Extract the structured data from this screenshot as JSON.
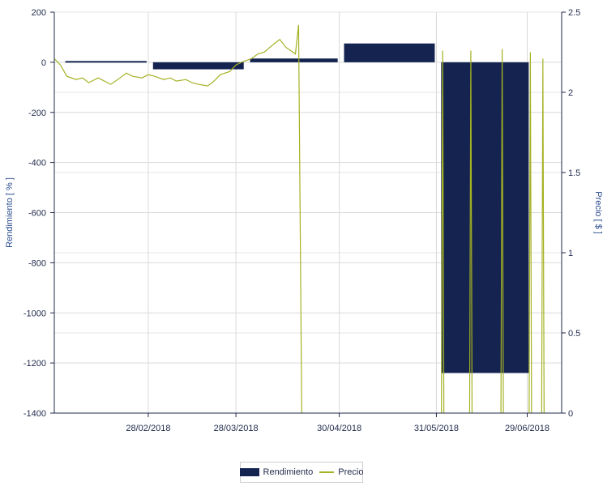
{
  "chart_data": {
    "type": "bar",
    "title": "",
    "xlabel": "",
    "ylabel": "Rendimiento  [ % ]",
    "y2label": "Precio  [ $ ]",
    "ylim": [
      -1400,
      200
    ],
    "y2lim": [
      0,
      2.5
    ],
    "yticks": [
      "200",
      "0",
      "-200",
      "-400",
      "-600",
      "-800",
      "-1000",
      "-1200",
      "-1400"
    ],
    "y2ticks": [
      "2.5",
      "2",
      "1.5",
      "1",
      "0.5",
      "0"
    ],
    "xticks": [
      "28/02/2018",
      "28/03/2018",
      "30/04/2018",
      "31/05/2018",
      "29/06/2018"
    ],
    "grid": true,
    "legend_position": "bottom",
    "colors": {
      "rendimiento": "#14234f",
      "precio": "#a5b224",
      "grid": "#d9d9d9",
      "axis": "#1f2a4a"
    },
    "series": [
      {
        "name": "Rendimiento",
        "type": "bar",
        "axis": "left",
        "bars": [
          {
            "start": "2018-02-01",
            "end": "2018-02-28",
            "value": 5
          },
          {
            "start": "2018-03-01",
            "end": "2018-03-31",
            "value": -28
          },
          {
            "start": "2018-04-01",
            "end": "2018-04-30",
            "value": 15
          },
          {
            "start": "2018-05-01",
            "end": "2018-05-31",
            "value": 75
          },
          {
            "start": "2018-06-01",
            "end": "2018-06-30",
            "value": -1240
          }
        ]
      },
      {
        "name": "Precio",
        "type": "line",
        "axis": "right",
        "points": [
          [
            "2018-01-29",
            2.21
          ],
          [
            "2018-01-31",
            2.17
          ],
          [
            "2018-02-02",
            2.1
          ],
          [
            "2018-02-05",
            2.08
          ],
          [
            "2018-02-07",
            2.09
          ],
          [
            "2018-02-09",
            2.06
          ],
          [
            "2018-02-12",
            2.09
          ],
          [
            "2018-02-14",
            2.07
          ],
          [
            "2018-02-16",
            2.05
          ],
          [
            "2018-02-19",
            2.09
          ],
          [
            "2018-02-21",
            2.12
          ],
          [
            "2018-02-23",
            2.1
          ],
          [
            "2018-02-26",
            2.09
          ],
          [
            "2018-02-28",
            2.11
          ],
          [
            "2018-03-02",
            2.1
          ],
          [
            "2018-03-05",
            2.08
          ],
          [
            "2018-03-07",
            2.09
          ],
          [
            "2018-03-09",
            2.07
          ],
          [
            "2018-03-12",
            2.08
          ],
          [
            "2018-03-14",
            2.06
          ],
          [
            "2018-03-16",
            2.05
          ],
          [
            "2018-03-19",
            2.04
          ],
          [
            "2018-03-21",
            2.07
          ],
          [
            "2018-03-23",
            2.11
          ],
          [
            "2018-03-26",
            2.13
          ],
          [
            "2018-03-28",
            2.17
          ],
          [
            "2018-03-30",
            2.19
          ],
          [
            "2018-04-02",
            2.21
          ],
          [
            "2018-04-04",
            2.24
          ],
          [
            "2018-04-06",
            2.25
          ],
          [
            "2018-04-09",
            2.3
          ],
          [
            "2018-04-11",
            2.33
          ],
          [
            "2018-04-13",
            2.28
          ],
          [
            "2018-04-16",
            2.24
          ],
          [
            "2018-04-17",
            2.42
          ],
          [
            "2018-04-18",
            0.0
          ]
        ],
        "spikes": [
          {
            "date": "2018-06-02",
            "value": 2.26
          },
          {
            "date": "2018-06-11",
            "value": 2.26
          },
          {
            "date": "2018-06-21",
            "value": 2.27
          },
          {
            "date": "2018-06-30",
            "value": 2.25
          },
          {
            "date": "2018-07-04",
            "value": 2.21
          }
        ]
      }
    ]
  },
  "legend": {
    "items": [
      {
        "label": "Rendimiento"
      },
      {
        "label": "Precio"
      }
    ]
  }
}
